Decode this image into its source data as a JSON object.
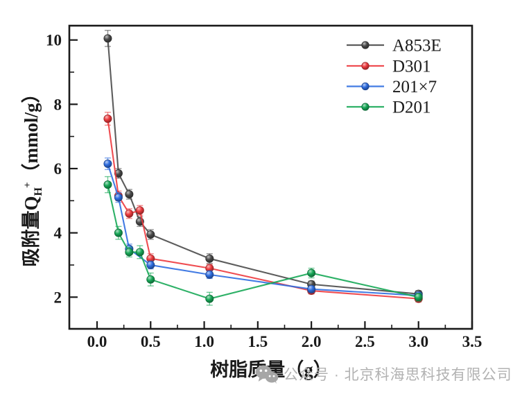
{
  "axes": {
    "x_title": "树脂质量（g）",
    "y_title": {
      "prefix": "吸附量Q",
      "sub": "H",
      "sup": "+",
      "suffix": "（mmol/g）"
    }
  },
  "watermark": {
    "text": "公众号 · 北京科海思科技有限公司",
    "icon": "wechat-icon",
    "color": "#b2b2b2"
  },
  "chart_data": {
    "type": "line",
    "title": "",
    "xlabel": "树脂质量（g）",
    "ylabel": "吸附量QH+（mmol/g）",
    "xlim": [
      -0.26,
      3.5
    ],
    "ylim": [
      1.0,
      10.43
    ],
    "grid": false,
    "legend_position": "upper-right-inside",
    "x_major_ticks": [
      0,
      0.5,
      1.0,
      1.5,
      2.0,
      2.5,
      3.0,
      3.5
    ],
    "x_major_tick_labels": [
      "0.0",
      "0.5",
      "1.0",
      "1.5",
      "2.0",
      "2.5",
      "3.0",
      "3.5"
    ],
    "x_minor_ticks": [
      0.25,
      0.75,
      1.25,
      1.75,
      2.25,
      2.75,
      3.25
    ],
    "y_major_ticks": [
      2,
      4,
      6,
      8,
      10
    ],
    "y_major_tick_labels": [
      "2",
      "4",
      "6",
      "8",
      "10"
    ],
    "y_minor_ticks": [
      3,
      5,
      7,
      9
    ],
    "frame_color": "#1a1a1a",
    "series": [
      {
        "name": "A853E",
        "color": "#4a4a4a",
        "x": [
          0.1,
          0.2,
          0.3,
          0.4,
          0.5,
          1.05,
          2.0,
          3.0
        ],
        "y": [
          10.05,
          5.85,
          5.2,
          4.35,
          3.95,
          3.2,
          2.4,
          2.1
        ],
        "err": [
          0.25,
          0.15,
          0.15,
          0.15,
          0.15,
          0.15,
          0.1,
          0.1
        ]
      },
      {
        "name": "D301",
        "color": "#ed3a3e",
        "x": [
          0.1,
          0.2,
          0.3,
          0.4,
          0.5,
          1.05,
          2.0,
          3.0
        ],
        "y": [
          7.55,
          5.15,
          4.6,
          4.7,
          3.2,
          2.9,
          2.2,
          1.95
        ],
        "err": [
          0.2,
          0.15,
          0.15,
          0.15,
          0.15,
          0.12,
          0.1,
          0.1
        ]
      },
      {
        "name": "201×7",
        "color": "#2e6de0",
        "x": [
          0.1,
          0.2,
          0.3,
          0.5,
          1.05,
          2.0,
          3.0
        ],
        "y": [
          6.15,
          5.1,
          3.5,
          3.0,
          2.7,
          2.25,
          2.05
        ],
        "err": [
          0.18,
          0.15,
          0.15,
          0.12,
          0.12,
          0.1,
          0.1
        ]
      },
      {
        "name": "D201",
        "color": "#17a857",
        "x": [
          0.1,
          0.2,
          0.3,
          0.4,
          0.5,
          1.05,
          2.0,
          3.0
        ],
        "y": [
          5.5,
          4.0,
          3.4,
          3.4,
          2.55,
          1.95,
          2.75,
          2.0
        ],
        "err": [
          0.25,
          0.2,
          0.15,
          0.2,
          0.2,
          0.2,
          0.15,
          0.12
        ]
      }
    ]
  }
}
